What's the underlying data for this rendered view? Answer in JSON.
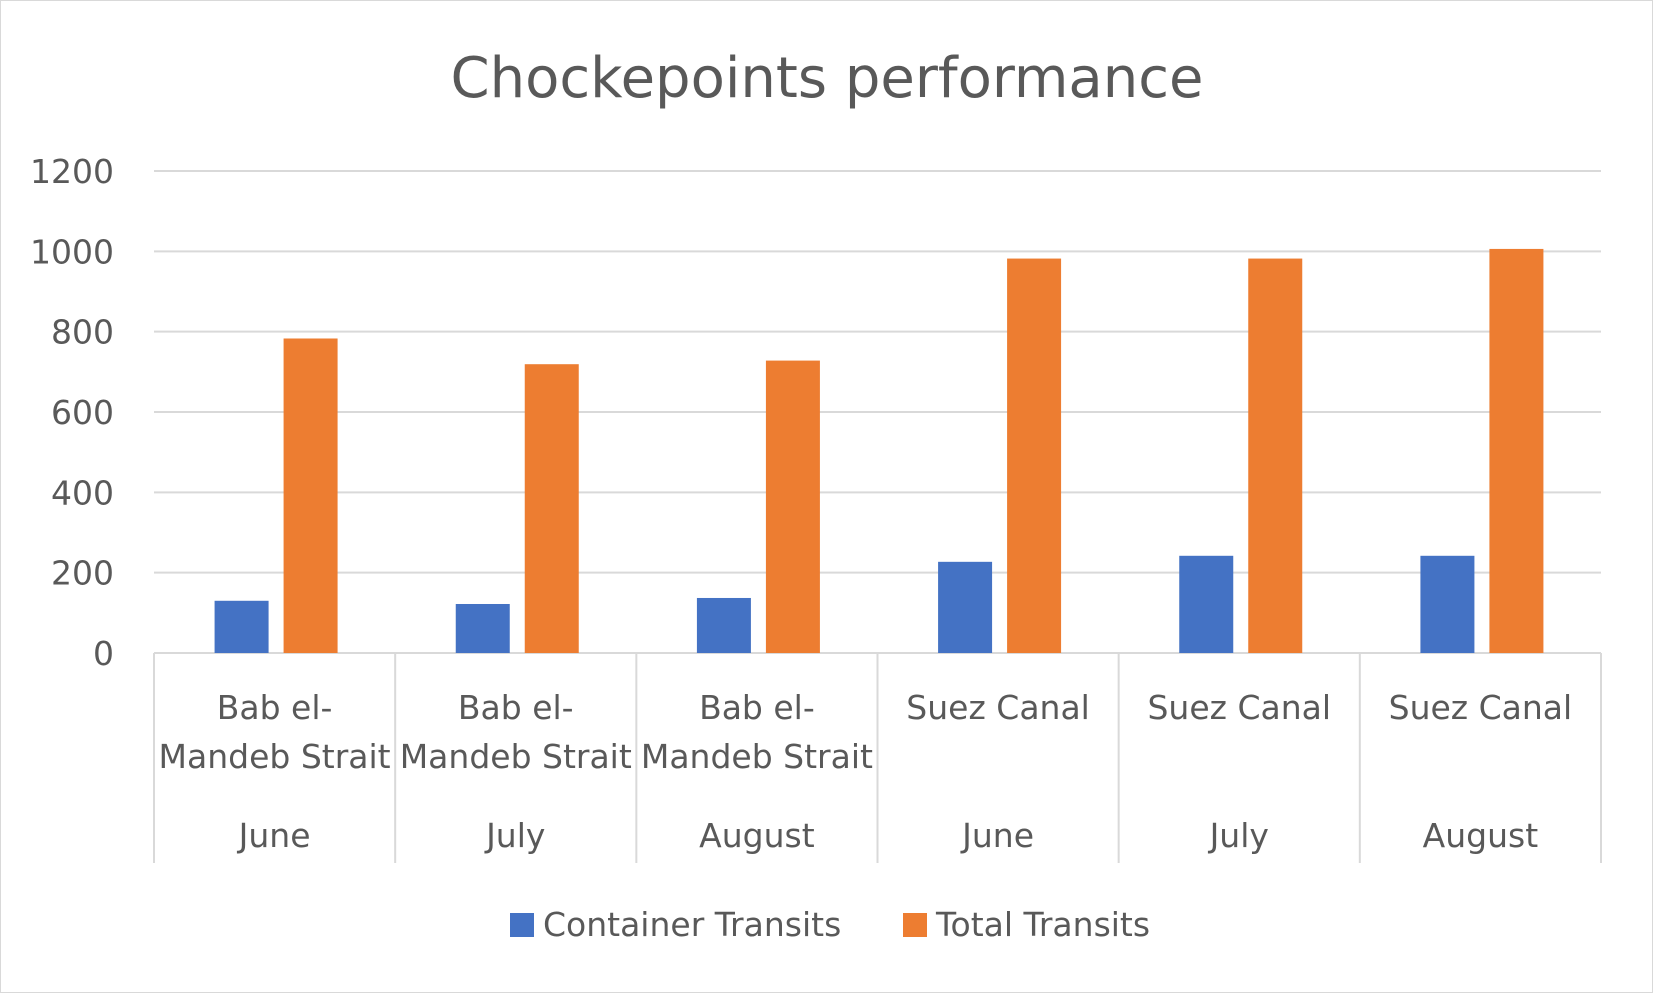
{
  "chart_data": {
    "type": "bar",
    "title": "Chockepoints performance",
    "xlabel": "",
    "ylabel": "",
    "ylim": [
      0,
      1200
    ],
    "yticks": [
      0,
      200,
      400,
      600,
      800,
      1000,
      1200
    ],
    "grid": true,
    "legend_position": "bottom",
    "categories": [
      {
        "location": [
          "Bab el-",
          "Mandeb Strait"
        ],
        "month": "June"
      },
      {
        "location": [
          "Bab el-",
          "Mandeb Strait"
        ],
        "month": "July"
      },
      {
        "location": [
          "Bab el-",
          "Mandeb Strait"
        ],
        "month": "August"
      },
      {
        "location": [
          "Suez Canal"
        ],
        "month": "June"
      },
      {
        "location": [
          "Suez Canal"
        ],
        "month": "July"
      },
      {
        "location": [
          "Suez Canal"
        ],
        "month": "August"
      }
    ],
    "series": [
      {
        "name": "Container Transits",
        "color": "#4472C4",
        "values": [
          130,
          122,
          137,
          227,
          242,
          242
        ]
      },
      {
        "name": "Total Transits",
        "color": "#ED7D31",
        "values": [
          783,
          719,
          728,
          982,
          982,
          1006
        ]
      }
    ]
  }
}
